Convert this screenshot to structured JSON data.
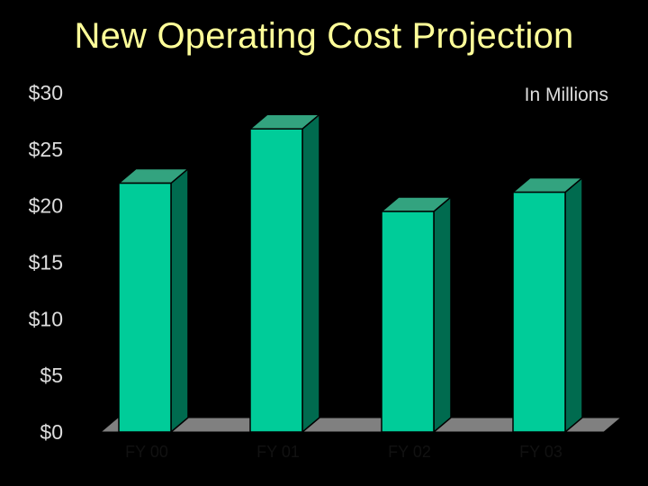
{
  "chart_data": {
    "type": "bar",
    "title": "New Operating Cost Projection",
    "unit_label": "In Millions",
    "categories": [
      "FY 00",
      "FY 01",
      "FY 02",
      "FY 03"
    ],
    "values": [
      22,
      26.8,
      19.5,
      21.2
    ],
    "ylim": [
      0,
      30
    ],
    "y_ticks": [
      "$0",
      "$5",
      "$10",
      "$15",
      "$20",
      "$25",
      "$30"
    ],
    "grid": false,
    "bar_front_color": "#00cc99",
    "bar_side_color": "#006b4f",
    "bar_top_color": "#33a37f",
    "floor_color": "#808080",
    "background_color": "#000000",
    "title_color": "#ffff99"
  }
}
